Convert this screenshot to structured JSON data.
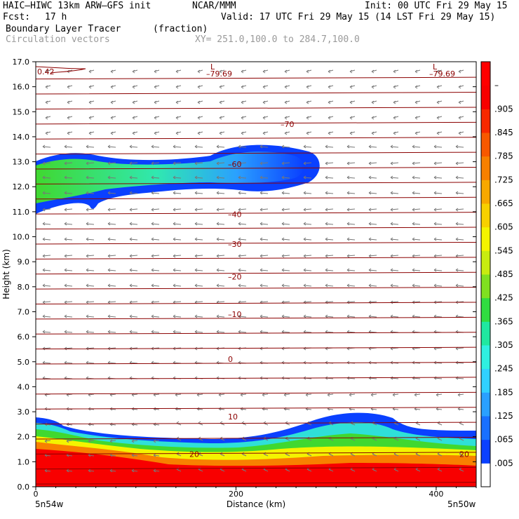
{
  "header": {
    "model": "HAIC–HIWC 13km ARW–GFS init",
    "org": "NCAR/MMM",
    "init": "Init: 00 UTC Fri 29 May 15",
    "fcst_label": "Fcst:",
    "fcst_value": "17 h",
    "valid": "Valid: 17 UTC Fri 29 May 15 (14 LST Fri 29 May 15)",
    "field": "Boundary Layer Tracer",
    "field_units": "(fraction)",
    "vectors": "Circulation vectors",
    "xy": "XY= 251.0,100.0 to 284.7,100.0"
  },
  "chart_data": {
    "type": "heatmap",
    "xlabel": "Distance (km)",
    "ylabel": "Height (km)",
    "xlim": [
      0,
      440
    ],
    "ylim": [
      0,
      17
    ],
    "x_ticks": [
      "0",
      "200",
      "400"
    ],
    "x_tick_values": [
      0,
      200,
      400
    ],
    "x_end_labels": [
      "5n54w",
      "5n50w"
    ],
    "y_ticks": [
      "0.0",
      "1.0",
      "2.0",
      "3.0",
      "4.0",
      "5.0",
      "6.0",
      "7.0",
      "8.0",
      "9.0",
      "10.0",
      "11.0",
      "12.0",
      "13.0",
      "14.0",
      "15.0",
      "16.0",
      "17.0"
    ],
    "colorbar_labels": [
      ".005",
      ".065",
      ".125",
      ".185",
      ".245",
      ".305",
      ".365",
      ".425",
      ".485",
      ".545",
      ".605",
      ".665",
      ".725",
      ".785",
      ".845",
      ".905",
      "–"
    ],
    "colorbar_colors": [
      "#ffffff",
      "#0a40ff",
      "#1870ff",
      "#2aa0ff",
      "#30d0ff",
      "#2ff0e0",
      "#20e8a0",
      "#30dc40",
      "#80e020",
      "#c8ec10",
      "#f4f400",
      "#f8d000",
      "#f8a800",
      "#f88000",
      "#f85800",
      "#f82800",
      "#f80000",
      "#ff0000"
    ],
    "isotherms": [
      {
        "label": "20",
        "height_km": 1.3
      },
      {
        "label": "10",
        "height_km": 2.8
      },
      {
        "label": "0",
        "height_km": 5.1
      },
      {
        "label": "–10",
        "height_km": 6.9
      },
      {
        "label": "–20",
        "height_km": 8.4
      },
      {
        "label": "–30",
        "height_km": 9.7
      },
      {
        "label": "–40",
        "height_km": 10.9
      },
      {
        "label": "–60",
        "height_km": 12.9
      },
      {
        "label": "–70",
        "height_km": 14.5
      }
    ],
    "annotations": [
      "0.42",
      "L",
      "–79.69",
      "L",
      "–79.69"
    ]
  }
}
